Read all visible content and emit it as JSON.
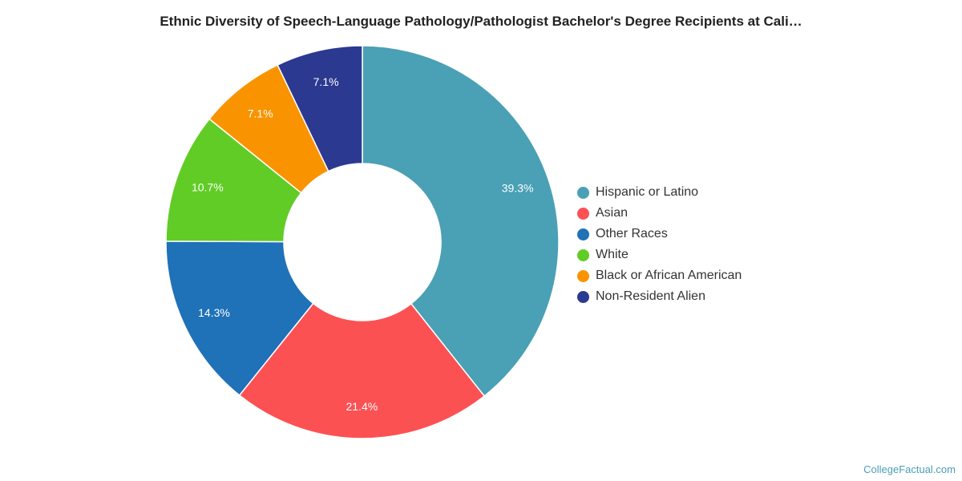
{
  "chart_data": {
    "type": "pie",
    "title": "Ethnic Diversity of Speech-Language Pathology/Pathologist Bachelor's Degree Recipients at Cali…",
    "categories": [
      "Hispanic or Latino",
      "Asian",
      "Other Races",
      "White",
      "Black or African American",
      "Non-Resident Alien"
    ],
    "values": [
      39.3,
      21.4,
      14.3,
      10.7,
      7.1,
      7.1
    ],
    "data_labels": [
      "39.3%",
      "21.4%",
      "14.3%",
      "10.7%",
      "7.1%",
      "7.1%"
    ],
    "colors": [
      "#4aa0b5",
      "#fc5153",
      "#1f71b8",
      "#61cc26",
      "#f99400",
      "#2b3990"
    ],
    "donut": true,
    "legend_position": "right"
  },
  "watermark": "CollegeFactual.com"
}
